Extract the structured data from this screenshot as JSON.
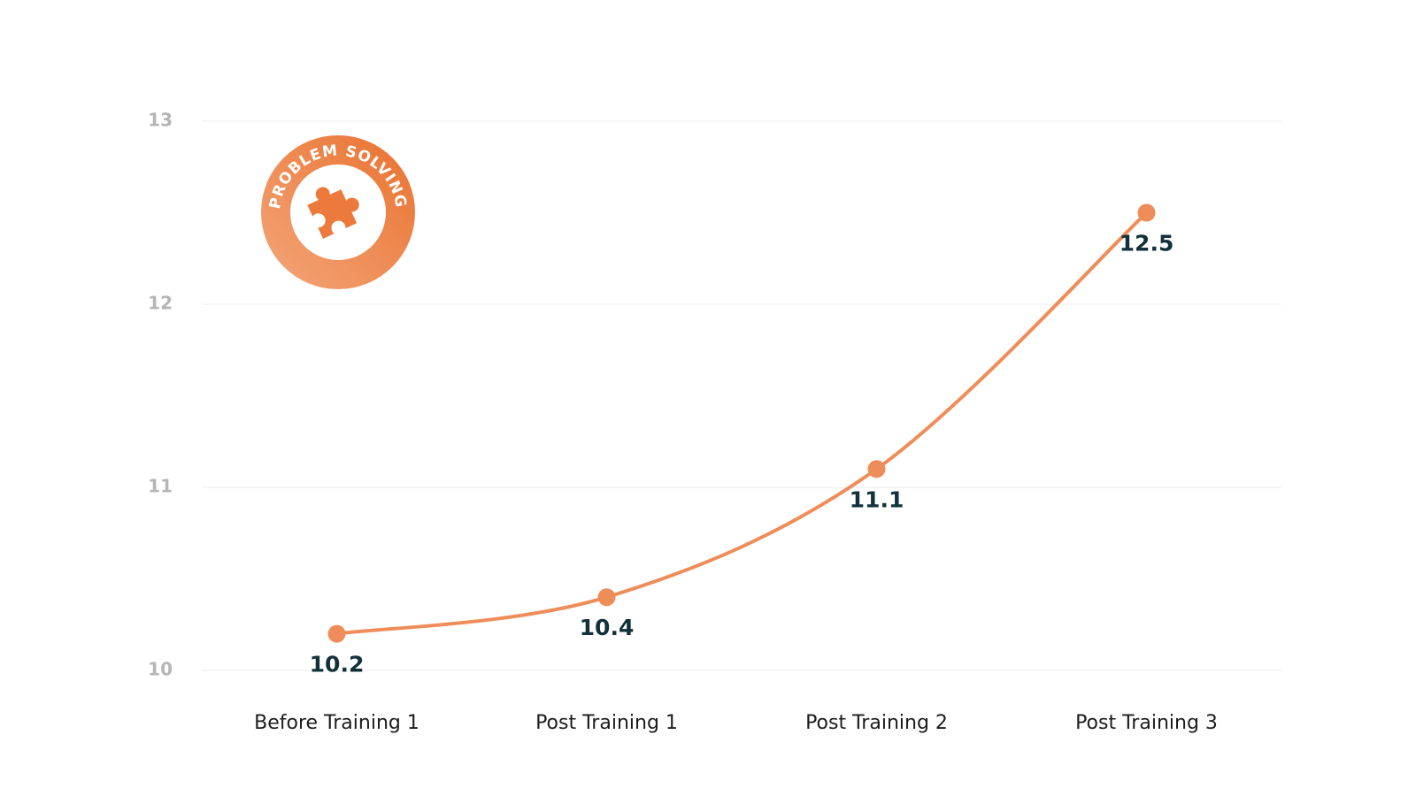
{
  "chart_data": {
    "type": "line",
    "badge": "PROBLEM SOLVING",
    "categories": [
      "Before Training 1",
      "Post Training 1",
      "Post Training 2",
      "Post Training 3"
    ],
    "values": [
      10.2,
      10.4,
      11.1,
      12.5
    ],
    "color": "#ef8d5a",
    "ylim": [
      10,
      13
    ],
    "yticks": [
      10,
      11,
      12,
      13
    ],
    "grid": true
  }
}
